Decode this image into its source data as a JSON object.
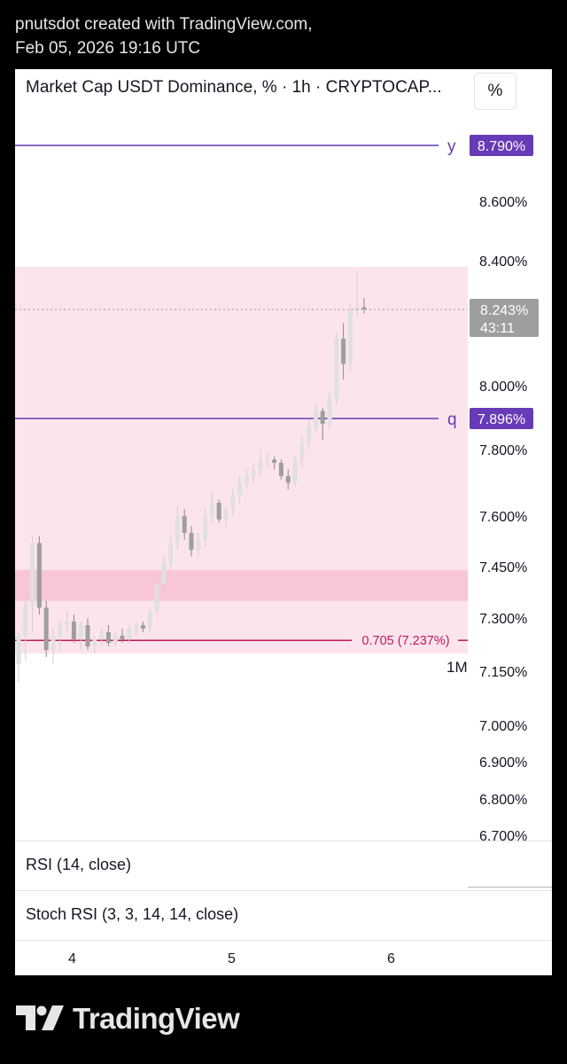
{
  "header": {
    "line1": "pnutsdot created with TradingView.com,",
    "line2": "Feb 05, 2026 19:16 UTC"
  },
  "chart": {
    "title": "Market Cap USDT Dominance, % · 1h · CRYPTOCAP...",
    "unit_button": "%"
  },
  "indicators": {
    "rsi_label": "RSI (14, close)",
    "stoch_label": "Stoch RSI (3, 3, 14, 14, close)"
  },
  "footer": {
    "brand": "TradingView"
  },
  "chart_data": {
    "type": "candlestick",
    "y_unit": "%",
    "y_ticks": [
      {
        "value": 8.6,
        "label": "8.600%"
      },
      {
        "value": 8.4,
        "label": "8.400%"
      },
      {
        "value": 8.0,
        "label": "8.000%"
      },
      {
        "value": 7.8,
        "label": "7.800%"
      },
      {
        "value": 7.6,
        "label": "7.600%"
      },
      {
        "value": 7.45,
        "label": "7.450%"
      },
      {
        "value": 7.3,
        "label": "7.300%"
      },
      {
        "value": 7.15,
        "label": "7.150%"
      },
      {
        "value": 7.0,
        "label": "7.000%"
      },
      {
        "value": 6.9,
        "label": "6.900%"
      },
      {
        "value": 6.8,
        "label": "6.800%"
      },
      {
        "value": 6.7,
        "label": "6.700%"
      }
    ],
    "x_labels": [
      "4",
      "5",
      "6"
    ],
    "current_price": {
      "value": 8.243,
      "label": "8.243%",
      "countdown": "43:11"
    },
    "horizontal_lines": [
      {
        "name": "y",
        "value": 8.79,
        "label": "8.790%",
        "color": "#673ab7"
      },
      {
        "name": "q",
        "value": 7.896,
        "label": "7.896%",
        "color": "#673ab7"
      }
    ],
    "fib_line": {
      "value": 7.237,
      "label": "0.705 (7.237%)",
      "color": "#c2185b"
    },
    "zones": [
      {
        "from": 7.2,
        "to": 8.38,
        "color": "#fce4ec"
      },
      {
        "from": 7.35,
        "to": 7.44,
        "color": "#f8c6d6"
      }
    ],
    "interval_badge": "1M",
    "candles": [
      {
        "o": 7.17,
        "h": 7.26,
        "l": 7.12,
        "c": 7.25
      },
      {
        "o": 7.25,
        "h": 7.36,
        "l": 7.18,
        "c": 7.34
      },
      {
        "o": 7.34,
        "h": 7.54,
        "l": 7.26,
        "c": 7.52
      },
      {
        "o": 7.52,
        "h": 7.54,
        "l": 7.31,
        "c": 7.33
      },
      {
        "o": 7.33,
        "h": 7.35,
        "l": 7.19,
        "c": 7.21
      },
      {
        "o": 7.21,
        "h": 7.27,
        "l": 7.17,
        "c": 7.25
      },
      {
        "o": 7.25,
        "h": 7.29,
        "l": 7.21,
        "c": 7.28
      },
      {
        "o": 7.28,
        "h": 7.32,
        "l": 7.26,
        "c": 7.29
      },
      {
        "o": 7.29,
        "h": 7.31,
        "l": 7.23,
        "c": 7.24
      },
      {
        "o": 7.24,
        "h": 7.29,
        "l": 7.21,
        "c": 7.28
      },
      {
        "o": 7.28,
        "h": 7.3,
        "l": 7.21,
        "c": 7.22
      },
      {
        "o": 7.22,
        "h": 7.25,
        "l": 7.2,
        "c": 7.24
      },
      {
        "o": 7.24,
        "h": 7.27,
        "l": 7.22,
        "c": 7.26
      },
      {
        "o": 7.26,
        "h": 7.28,
        "l": 7.22,
        "c": 7.23
      },
      {
        "o": 7.23,
        "h": 7.26,
        "l": 7.22,
        "c": 7.25
      },
      {
        "o": 7.25,
        "h": 7.27,
        "l": 7.23,
        "c": 7.24
      },
      {
        "o": 7.24,
        "h": 7.28,
        "l": 7.23,
        "c": 7.27
      },
      {
        "o": 7.27,
        "h": 7.29,
        "l": 7.25,
        "c": 7.28
      },
      {
        "o": 7.28,
        "h": 7.29,
        "l": 7.26,
        "c": 7.27
      },
      {
        "o": 7.27,
        "h": 7.33,
        "l": 7.26,
        "c": 7.32
      },
      {
        "o": 7.32,
        "h": 7.41,
        "l": 7.31,
        "c": 7.4
      },
      {
        "o": 7.4,
        "h": 7.48,
        "l": 7.38,
        "c": 7.46
      },
      {
        "o": 7.46,
        "h": 7.54,
        "l": 7.44,
        "c": 7.52
      },
      {
        "o": 7.52,
        "h": 7.63,
        "l": 7.5,
        "c": 7.6
      },
      {
        "o": 7.6,
        "h": 7.62,
        "l": 7.53,
        "c": 7.55
      },
      {
        "o": 7.55,
        "h": 7.57,
        "l": 7.48,
        "c": 7.5
      },
      {
        "o": 7.5,
        "h": 7.55,
        "l": 7.48,
        "c": 7.53
      },
      {
        "o": 7.53,
        "h": 7.62,
        "l": 7.51,
        "c": 7.6
      },
      {
        "o": 7.6,
        "h": 7.67,
        "l": 7.58,
        "c": 7.64
      },
      {
        "o": 7.64,
        "h": 7.65,
        "l": 7.58,
        "c": 7.59
      },
      {
        "o": 7.59,
        "h": 7.63,
        "l": 7.57,
        "c": 7.62
      },
      {
        "o": 7.62,
        "h": 7.68,
        "l": 7.6,
        "c": 7.66
      },
      {
        "o": 7.66,
        "h": 7.72,
        "l": 7.64,
        "c": 7.7
      },
      {
        "o": 7.7,
        "h": 7.74,
        "l": 7.68,
        "c": 7.72
      },
      {
        "o": 7.72,
        "h": 7.76,
        "l": 7.7,
        "c": 7.74
      },
      {
        "o": 7.74,
        "h": 7.8,
        "l": 7.72,
        "c": 7.77
      },
      {
        "o": 7.77,
        "h": 7.79,
        "l": 7.75,
        "c": 7.77
      },
      {
        "o": 7.77,
        "h": 7.78,
        "l": 7.74,
        "c": 7.76
      },
      {
        "o": 7.76,
        "h": 7.77,
        "l": 7.71,
        "c": 7.72
      },
      {
        "o": 7.72,
        "h": 7.74,
        "l": 7.68,
        "c": 7.7
      },
      {
        "o": 7.7,
        "h": 7.78,
        "l": 7.69,
        "c": 7.77
      },
      {
        "o": 7.77,
        "h": 7.84,
        "l": 7.75,
        "c": 7.82
      },
      {
        "o": 7.82,
        "h": 7.89,
        "l": 7.8,
        "c": 7.87
      },
      {
        "o": 7.87,
        "h": 7.94,
        "l": 7.85,
        "c": 7.92
      },
      {
        "o": 7.92,
        "h": 7.93,
        "l": 7.83,
        "c": 7.88
      },
      {
        "o": 7.88,
        "h": 7.98,
        "l": 7.86,
        "c": 7.96
      },
      {
        "o": 7.96,
        "h": 8.17,
        "l": 7.94,
        "c": 8.15
      },
      {
        "o": 8.15,
        "h": 8.2,
        "l": 8.02,
        "c": 8.07
      },
      {
        "o": 8.07,
        "h": 8.26,
        "l": 8.05,
        "c": 8.24
      },
      {
        "o": 8.24,
        "h": 8.37,
        "l": 8.22,
        "c": 8.25
      },
      {
        "o": 8.25,
        "h": 8.28,
        "l": 8.23,
        "c": 8.243
      }
    ]
  }
}
